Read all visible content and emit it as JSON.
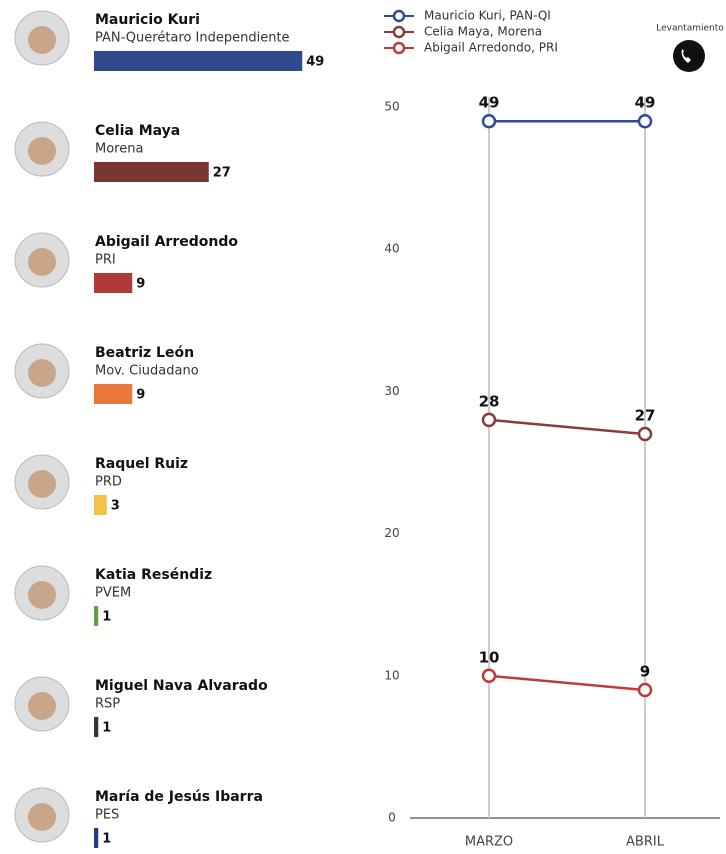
{
  "chart_data": [
    {
      "type": "hbar",
      "categories": [
        "Mauricio Kuri",
        "Celia Maya",
        "Abigail Arredondo",
        "Beatriz León",
        "Raquel Ruiz",
        "Katia Reséndiz",
        "Miguel Nava Alvarado",
        "María de Jesús Ibarra"
      ],
      "parties": [
        "PAN-Querétaro Independiente",
        "Morena",
        "PRI",
        "Mov. Ciudadano",
        "PRD",
        "PVEM",
        "RSP",
        "PES"
      ],
      "values": [
        49,
        27,
        9,
        9,
        3,
        1,
        1,
        1
      ],
      "colors": [
        "#2e4a8a",
        "#7b3535",
        "#b03a3a",
        "#e8773a",
        "#f3c04a",
        "#6a9a4a",
        "#333333",
        "#2a3a80"
      ]
    },
    {
      "type": "line",
      "categories": [
        "MARZO",
        "ABRIL"
      ],
      "series": [
        {
          "name": "Mauricio Kuri, PAN-QI",
          "color": "#2e4a9a",
          "values": [
            49,
            49
          ]
        },
        {
          "name": "Celia Maya, Morena",
          "color": "#8a3a3a",
          "values": [
            28,
            27
          ]
        },
        {
          "name": "Abigail Arredondo, PRI",
          "color": "#c03a3a",
          "values": [
            10,
            9
          ]
        }
      ],
      "ylim": [
        0,
        50
      ],
      "yticks": [
        0,
        10,
        20,
        30,
        40,
        50
      ],
      "grid": true
    }
  ],
  "header": {
    "label": "Levantamiento"
  }
}
